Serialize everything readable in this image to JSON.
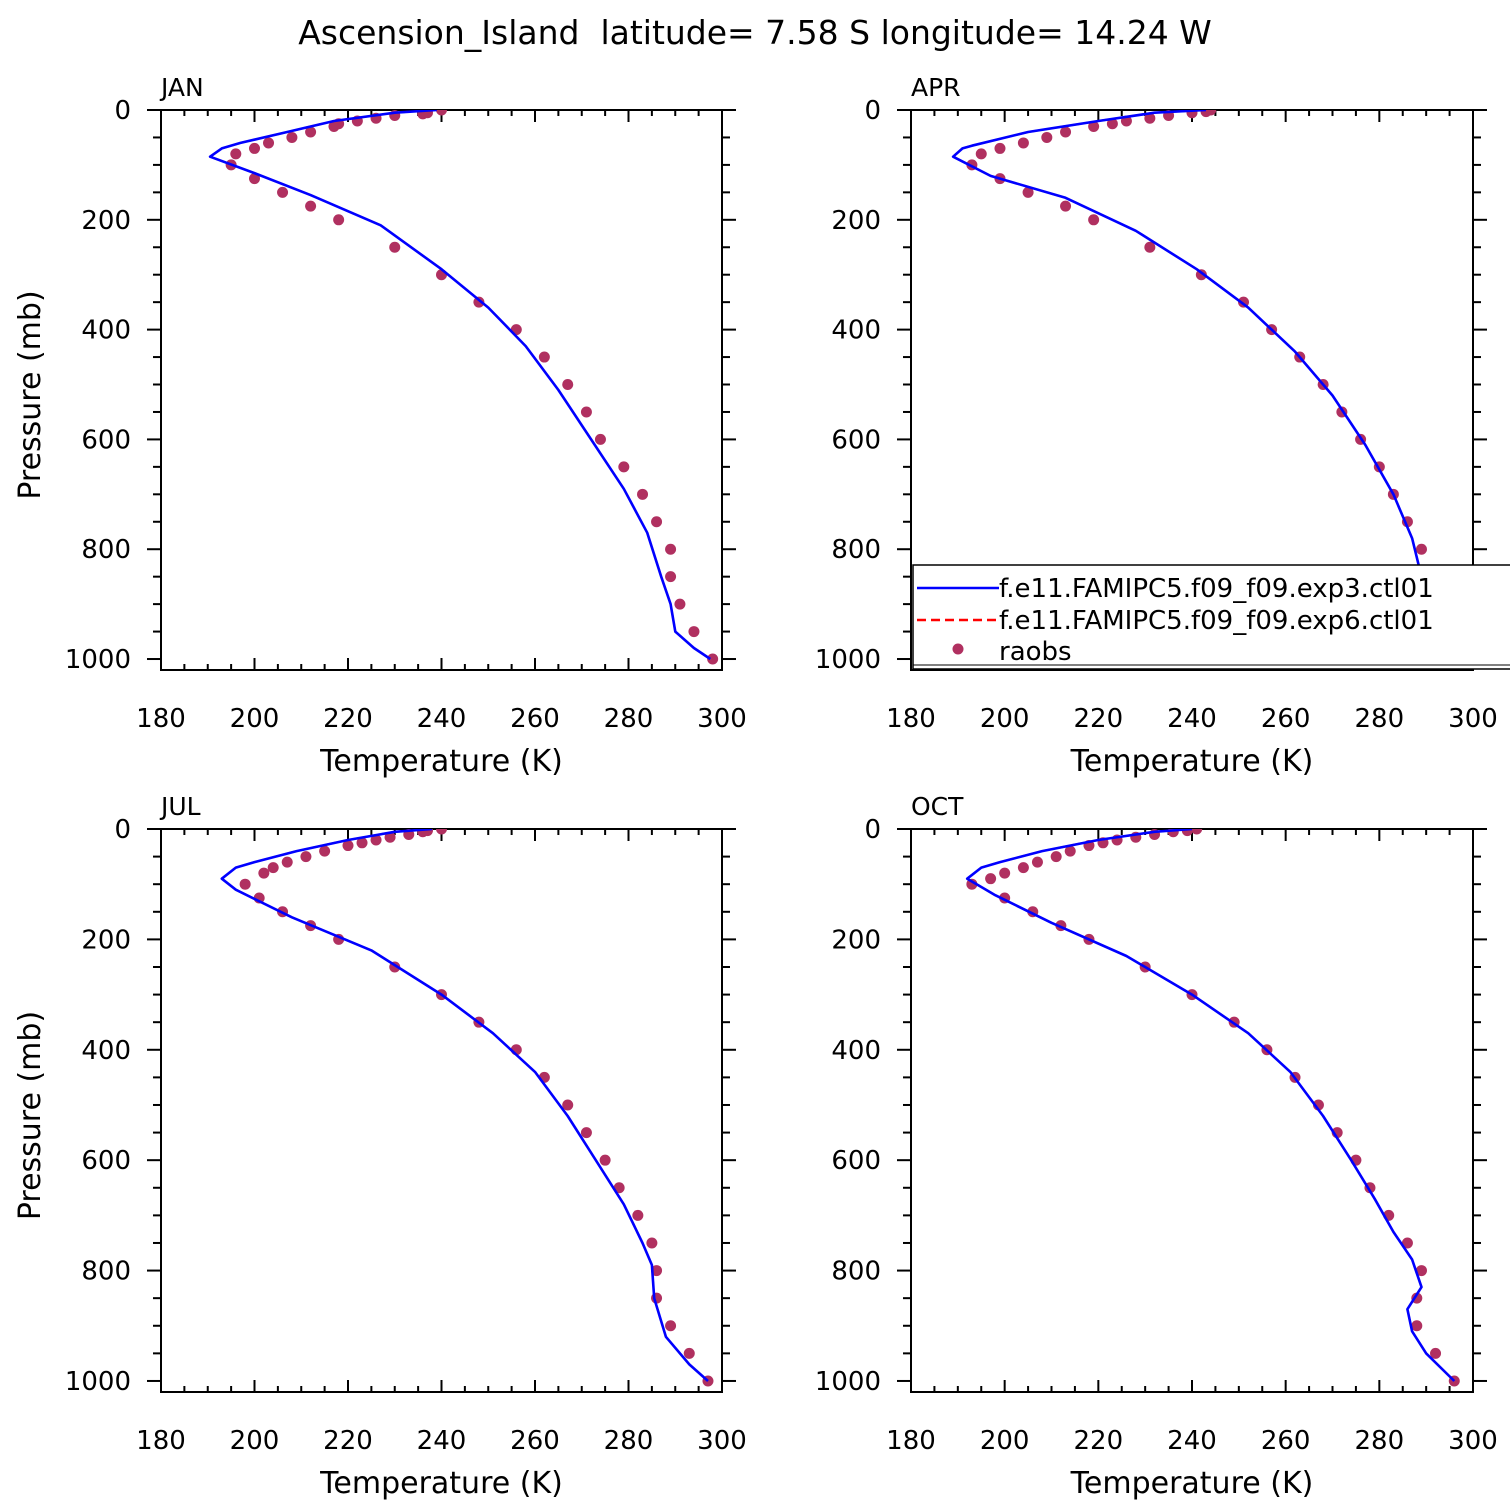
{
  "figure": {
    "title": "Ascension_Island  latitude= 7.58 S longitude= 14.24 W"
  },
  "colors": {
    "model_exp3": "#0000ff",
    "model_exp6": "#ff0000",
    "raobs": "#b03060",
    "axes": "#000000"
  },
  "chart_data": [
    {
      "type": "line",
      "panel_label": "JAN",
      "xlabel": "Temperature (K)",
      "ylabel": "Pressure (mb)",
      "xlim": [
        180,
        300
      ],
      "ylim": [
        1020,
        0
      ],
      "x_ticks": [
        "180",
        "200",
        "220",
        "240",
        "260",
        "280",
        "300"
      ],
      "y_ticks": [
        "0",
        "200",
        "400",
        "600",
        "800",
        "1000"
      ],
      "series": [
        {
          "name": "f.e11.FAMIPC5.f09_f09.exp3.ctl01",
          "style": "solid",
          "x": [
            239,
            230,
            217,
            207,
            197,
            193,
            190.5,
            200,
            212,
            227,
            240,
            250,
            258,
            265,
            272,
            279,
            284,
            287,
            289,
            290,
            294,
            297.5
          ],
          "y": [
            0,
            5,
            20,
            40,
            60,
            70,
            85,
            115,
            155,
            210,
            290,
            360,
            430,
            510,
            600,
            690,
            770,
            850,
            900,
            950,
            980,
            1000
          ]
        },
        {
          "name": "f.e11.FAMIPC5.f09_f09.exp6.ctl01",
          "style": "dashed",
          "x": [
            239,
            230,
            217,
            207,
            197,
            193,
            190.5,
            200,
            212,
            227,
            240,
            250,
            258,
            265,
            272,
            279,
            284,
            287,
            289,
            290,
            294,
            297.5
          ],
          "y": [
            0,
            5,
            20,
            40,
            60,
            70,
            85,
            115,
            155,
            210,
            290,
            360,
            430,
            510,
            600,
            690,
            770,
            850,
            900,
            950,
            980,
            1000
          ]
        },
        {
          "name": "raobs",
          "style": "points",
          "x": [
            240,
            237,
            236,
            230,
            226,
            222,
            218,
            217,
            212,
            208,
            203,
            200,
            196,
            195,
            200,
            206,
            212,
            218,
            230,
            240,
            248,
            256,
            262,
            267,
            271,
            274,
            279,
            283,
            286,
            289,
            289,
            291,
            294,
            298
          ],
          "y": [
            0,
            5,
            7,
            10,
            15,
            20,
            25,
            30,
            40,
            50,
            60,
            70,
            80,
            100,
            125,
            150,
            175,
            200,
            250,
            300,
            350,
            400,
            450,
            500,
            550,
            600,
            650,
            700,
            750,
            800,
            850,
            900,
            950,
            1000
          ]
        }
      ]
    },
    {
      "type": "line",
      "panel_label": "APR",
      "xlabel": "Temperature (K)",
      "ylabel": "",
      "xlim": [
        180,
        300
      ],
      "ylim": [
        1020,
        0
      ],
      "x_ticks": [
        "180",
        "200",
        "220",
        "240",
        "260",
        "280",
        "300"
      ],
      "y_ticks": [
        "0",
        "200",
        "400",
        "600",
        "800",
        "1000"
      ],
      "legend": {
        "position": "bottom-right, over plot"
      },
      "series": [
        {
          "name": "f.e11.FAMIPC5.f09_f09.exp3.ctl01",
          "style": "solid",
          "x": [
            243,
            232,
            220,
            205,
            193,
            191,
            189,
            197,
            213,
            228,
            241,
            252,
            262,
            270,
            277,
            283,
            287,
            289,
            291,
            294,
            297,
            300
          ],
          "y": [
            0,
            5,
            20,
            40,
            65,
            70,
            85,
            120,
            160,
            220,
            290,
            360,
            440,
            520,
            610,
            700,
            780,
            850,
            900,
            930,
            970,
            1000
          ]
        },
        {
          "name": "f.e11.FAMIPC5.f09_f09.exp6.ctl01",
          "style": "dashed",
          "x": [
            243,
            232,
            220,
            205,
            193,
            191,
            189,
            197,
            213,
            228,
            241,
            252,
            262,
            270,
            277,
            283,
            287,
            289,
            291,
            294,
            297,
            300
          ],
          "y": [
            0,
            5,
            20,
            40,
            65,
            70,
            85,
            120,
            160,
            220,
            290,
            360,
            440,
            520,
            610,
            700,
            780,
            850,
            900,
            930,
            970,
            1000
          ]
        },
        {
          "name": "raobs",
          "style": "points",
          "x": [
            244,
            243,
            240,
            235,
            231,
            226,
            223,
            219,
            213,
            209,
            204,
            199,
            195,
            193,
            199,
            205,
            213,
            219,
            231,
            242,
            251,
            257,
            263,
            268,
            272,
            276,
            280,
            283,
            286,
            289,
            290,
            292,
            295,
            300
          ],
          "y": [
            0,
            3,
            5,
            10,
            15,
            20,
            25,
            30,
            40,
            50,
            60,
            70,
            80,
            100,
            125,
            150,
            175,
            200,
            250,
            300,
            350,
            400,
            450,
            500,
            550,
            600,
            650,
            700,
            750,
            800,
            850,
            900,
            950,
            1000
          ]
        }
      ]
    },
    {
      "type": "line",
      "panel_label": "JUL",
      "xlabel": "Temperature (K)",
      "ylabel": "Pressure (mb)",
      "xlim": [
        180,
        300
      ],
      "ylim": [
        1020,
        0
      ],
      "x_ticks": [
        "180",
        "200",
        "220",
        "240",
        "260",
        "280",
        "300"
      ],
      "y_ticks": [
        "0",
        "200",
        "400",
        "600",
        "800",
        "1000"
      ],
      "series": [
        {
          "name": "f.e11.FAMIPC5.f09_f09.exp3.ctl01",
          "style": "solid",
          "x": [
            238,
            230,
            220,
            209,
            200,
            196,
            193,
            196,
            208,
            225,
            240,
            251,
            260,
            267,
            273,
            279,
            283,
            285,
            285.5,
            288,
            293,
            297
          ],
          "y": [
            0,
            5,
            20,
            40,
            60,
            70,
            90,
            110,
            160,
            220,
            300,
            370,
            440,
            520,
            600,
            680,
            750,
            790,
            850,
            920,
            970,
            1000
          ]
        },
        {
          "name": "f.e11.FAMIPC5.f09_f09.exp6.ctl01",
          "style": "dashed",
          "x": [
            238,
            230,
            220,
            209,
            200,
            196,
            193,
            196,
            208,
            225,
            240,
            251,
            260,
            267,
            273,
            279,
            283,
            285,
            285.5,
            288,
            293,
            297
          ],
          "y": [
            0,
            5,
            20,
            40,
            60,
            70,
            90,
            110,
            160,
            220,
            300,
            370,
            440,
            520,
            600,
            680,
            750,
            790,
            850,
            920,
            970,
            1000
          ]
        },
        {
          "name": "raobs",
          "style": "points",
          "x": [
            240,
            237,
            236,
            233,
            229,
            226,
            223,
            220,
            215,
            211,
            207,
            204,
            202,
            198,
            201,
            206,
            212,
            218,
            230,
            240,
            248,
            256,
            262,
            267,
            271,
            275,
            278,
            282,
            285,
            286,
            286,
            289,
            293,
            297
          ],
          "y": [
            0,
            3,
            5,
            10,
            15,
            20,
            25,
            30,
            40,
            50,
            60,
            70,
            80,
            100,
            125,
            150,
            175,
            200,
            250,
            300,
            350,
            400,
            450,
            500,
            550,
            600,
            650,
            700,
            750,
            800,
            850,
            900,
            950,
            1000
          ]
        }
      ]
    },
    {
      "type": "line",
      "panel_label": "OCT",
      "xlabel": "Temperature (K)",
      "ylabel": "",
      "xlim": [
        180,
        300
      ],
      "ylim": [
        1020,
        0
      ],
      "x_ticks": [
        "180",
        "200",
        "220",
        "240",
        "260",
        "280",
        "300"
      ],
      "y_ticks": [
        "0",
        "200",
        "400",
        "600",
        "800",
        "1000"
      ],
      "series": [
        {
          "name": "f.e11.FAMIPC5.f09_f09.exp3.ctl01",
          "style": "solid",
          "x": [
            240,
            232,
            220,
            208,
            199,
            195,
            192,
            198,
            210,
            226,
            240,
            252,
            261,
            268,
            274,
            279,
            283,
            287,
            289,
            286,
            287,
            290,
            296
          ],
          "y": [
            0,
            5,
            20,
            40,
            60,
            70,
            90,
            120,
            170,
            230,
            300,
            370,
            440,
            520,
            600,
            670,
            730,
            780,
            830,
            870,
            910,
            950,
            1000
          ]
        },
        {
          "name": "f.e11.FAMIPC5.f09_f09.exp6.ctl01",
          "style": "dashed",
          "x": [
            240,
            232,
            220,
            208,
            199,
            195,
            192,
            198,
            210,
            226,
            240,
            252,
            261,
            268,
            274,
            279,
            283,
            287,
            289,
            286,
            287,
            290,
            296
          ],
          "y": [
            0,
            5,
            20,
            40,
            60,
            70,
            90,
            120,
            170,
            230,
            300,
            370,
            440,
            520,
            600,
            670,
            730,
            780,
            830,
            870,
            910,
            950,
            1000
          ]
        },
        {
          "name": "raobs",
          "style": "points",
          "x": [
            241,
            239,
            236,
            232,
            228,
            224,
            221,
            218,
            214,
            211,
            207,
            204,
            200,
            197,
            193,
            200,
            206,
            212,
            218,
            230,
            240,
            249,
            256,
            262,
            267,
            271,
            275,
            278,
            282,
            286,
            289,
            288,
            288,
            292,
            296
          ],
          "y": [
            0,
            3,
            5,
            10,
            15,
            20,
            25,
            30,
            40,
            50,
            60,
            70,
            80,
            90,
            100,
            125,
            150,
            175,
            200,
            250,
            300,
            350,
            400,
            450,
            500,
            550,
            600,
            650,
            700,
            750,
            800,
            850,
            900,
            950,
            1000
          ]
        }
      ]
    }
  ]
}
